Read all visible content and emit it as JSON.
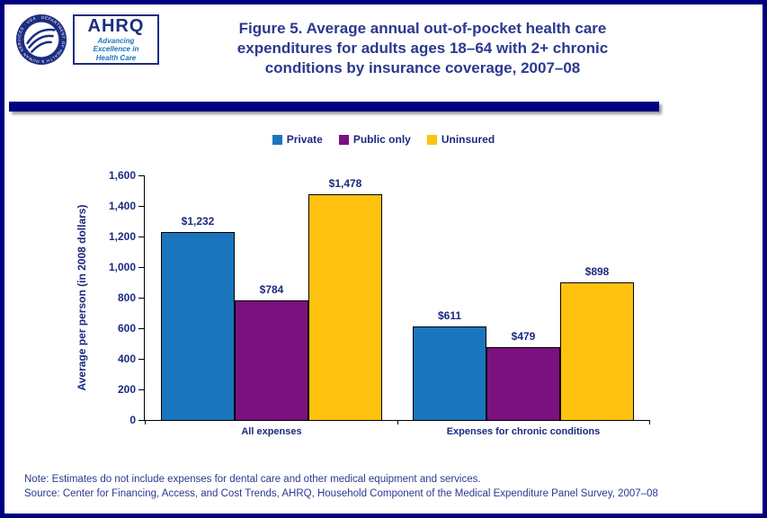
{
  "header": {
    "title": "Figure 5. Average annual out-of-pocket health care\nexpenditures for adults ages 18–64 with 2+ chronic\nconditions by insurance coverage, 2007–08",
    "ahrq_acronym": "AHRQ",
    "ahrq_tagline": "Advancing\nExcellence in\nHealth Care",
    "hhs_seal_text": "DEPARTMENT OF HEALTH & HUMAN SERVICES · USA"
  },
  "chart_data": {
    "type": "bar",
    "title": "Figure 5. Average annual out-of-pocket health care expenditures for adults ages 18–64 with 2+ chronic conditions by insurance coverage, 2007–08",
    "categories": [
      "All expenses",
      "Expenses for chronic conditions"
    ],
    "series": [
      {
        "name": "Private",
        "color": "#1B75BC",
        "values": [
          1232,
          611
        ],
        "labels": [
          "$1,232",
          "$611"
        ]
      },
      {
        "name": "Public only",
        "color": "#7A117E",
        "values": [
          784,
          479
        ],
        "labels": [
          "$784",
          "$479"
        ]
      },
      {
        "name": "Uninsured",
        "color": "#FFC20E",
        "values": [
          1478,
          898
        ],
        "labels": [
          "$1,478",
          "$898"
        ]
      }
    ],
    "xlabel": "",
    "ylabel": "Average per person (in 2008 dollars)",
    "ylim": [
      0,
      1600
    ],
    "ytick_labels": [
      "0",
      "200",
      "400",
      "600",
      "800",
      "1,000",
      "1,200",
      "1,400",
      "1,600"
    ],
    "grid": false,
    "legend_position": "top"
  },
  "footer": {
    "note": "Note:  Estimates do not include expenses for dental care and other medical equipment and services.",
    "source": "Source: Center for Financing, Access, and Cost Trends, AHRQ, Household Component of the Medical Expenditure Panel Survey, 2007–08"
  },
  "colors": {
    "page_border_navy": "#000080",
    "title_blue": "#2B3990",
    "chart_text_navy": "#1B2A80",
    "axis_black": "#000000"
  }
}
